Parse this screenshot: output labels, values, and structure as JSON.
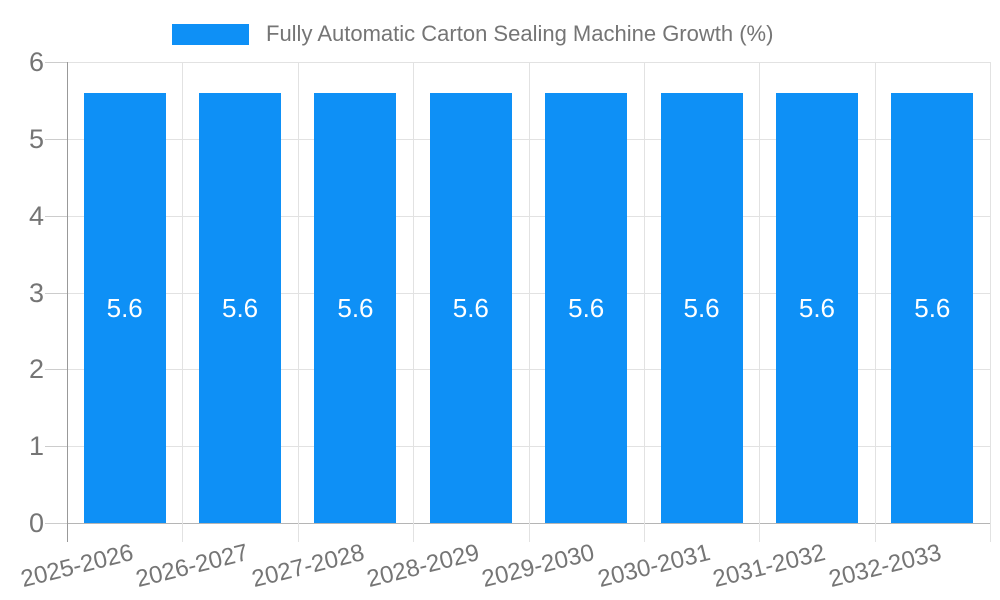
{
  "chart_data": {
    "type": "bar",
    "title": "Fully Automatic Carton Sealing Machine Growth (%)",
    "categories": [
      "2025-2026",
      "2026-2027",
      "2027-2028",
      "2028-2029",
      "2029-2030",
      "2030-2031",
      "2031-2032",
      "2032-2033"
    ],
    "series": [
      {
        "name": "Fully Automatic Carton Sealing Machine Growth (%)",
        "values": [
          5.6,
          5.6,
          5.6,
          5.6,
          5.6,
          5.6,
          5.6,
          5.6
        ],
        "value_labels": [
          "5.6",
          "5.6",
          "5.6",
          "5.6",
          "5.6",
          "5.6",
          "5.6",
          "5.6"
        ]
      }
    ],
    "xlabel": "",
    "ylabel": "",
    "ylim": [
      0,
      6
    ],
    "yticks": [
      "0",
      "1",
      "2",
      "3",
      "4",
      "5",
      "6"
    ],
    "legend_position": "top",
    "grid": true,
    "x_label_rotation_deg": -14,
    "colors": {
      "bar": "#0e90f6",
      "bar_value_text": "#ffffff",
      "grid_line": "#e2e2e2",
      "y_axis_line": "#999999",
      "zero_axis_line": "#b5b5b5",
      "tick_mark": "#cccccc",
      "text": "#757575",
      "background": "#ffffff"
    }
  }
}
